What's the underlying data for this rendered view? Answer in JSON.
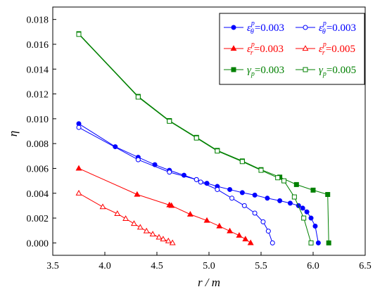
{
  "chart_data": {
    "type": "line",
    "title": "",
    "xlabel": "r / m",
    "ylabel": "η",
    "xlim": [
      3.5,
      6.5
    ],
    "ylim": [
      -0.001,
      0.019
    ],
    "xticks": [
      "3.5",
      "4.0",
      "4.5",
      "5.0",
      "5.5",
      "6.0",
      "6.5"
    ],
    "yticks": [
      "0.000",
      "0.002",
      "0.004",
      "0.006",
      "0.008",
      "0.010",
      "0.012",
      "0.014",
      "0.016",
      "0.018"
    ],
    "grid": false,
    "legend_position": "top-right",
    "series": [
      {
        "name": "εθp=0.003",
        "legend": {
          "sym": "ε",
          "sub": "θ",
          "sup": "p",
          "value": "=0.003"
        },
        "color": "#0000ff",
        "marker": "circle",
        "filled": true,
        "x": [
          3.75,
          4.1,
          4.32,
          4.48,
          4.62,
          4.76,
          4.88,
          4.98,
          5.08,
          5.2,
          5.32,
          5.44,
          5.56,
          5.68,
          5.78,
          5.86,
          5.9,
          5.94,
          5.98,
          6.02,
          6.05
        ],
        "y": [
          0.0096,
          0.00775,
          0.0069,
          0.0063,
          0.00585,
          0.00545,
          0.0051,
          0.0048,
          0.00455,
          0.0043,
          0.00405,
          0.00385,
          0.0036,
          0.0034,
          0.0032,
          0.003,
          0.0028,
          0.0025,
          0.002,
          0.00135,
          0.0
        ]
      },
      {
        "name": "εθp=0.003",
        "legend": {
          "sym": "ε",
          "sub": "θ",
          "sup": "p",
          "value": "=0.003"
        },
        "color": "#0000ff",
        "marker": "circle",
        "filled": false,
        "x": [
          3.75,
          4.32,
          4.62,
          4.88,
          4.92,
          5.08,
          5.22,
          5.34,
          5.44,
          5.52,
          5.57,
          5.61
        ],
        "y": [
          0.0093,
          0.0067,
          0.0057,
          0.0051,
          0.0049,
          0.0043,
          0.0036,
          0.003,
          0.0024,
          0.0017,
          0.00095,
          0.0
        ]
      },
      {
        "name": "εrp=0.003",
        "legend": {
          "sym": "ε",
          "sub": "r",
          "sup": "p",
          "value": "=0.003"
        },
        "color": "#ff0000",
        "marker": "triangle",
        "filled": true,
        "x": [
          3.75,
          4.31,
          4.62,
          4.64,
          4.82,
          4.98,
          5.1,
          5.2,
          5.29,
          5.35,
          5.4
        ],
        "y": [
          0.006,
          0.0039,
          0.00305,
          0.003,
          0.0023,
          0.0018,
          0.00135,
          0.00095,
          0.0006,
          0.0003,
          0.0
        ]
      },
      {
        "name": "εrp=0.005",
        "legend": {
          "sym": "ε",
          "sub": "r",
          "sup": "p",
          "value": "=0.005"
        },
        "color": "#ff0000",
        "marker": "triangle",
        "filled": false,
        "x": [
          3.75,
          3.98,
          4.12,
          4.2,
          4.28,
          4.34,
          4.4,
          4.46,
          4.52,
          4.56,
          4.61,
          4.65
        ],
        "y": [
          0.004,
          0.0029,
          0.00235,
          0.00195,
          0.00155,
          0.00125,
          0.00095,
          0.0007,
          0.00045,
          0.0003,
          0.00015,
          0.0
        ]
      },
      {
        "name": "γp=0.003",
        "legend": {
          "sym": "γ",
          "sub": "p",
          "sup": "",
          "value": "=0.003"
        },
        "color": "#008000",
        "marker": "square",
        "filled": true,
        "x": [
          3.75,
          4.32,
          4.62,
          4.88,
          5.08,
          5.32,
          5.5,
          5.68,
          5.84,
          6.0,
          6.14,
          6.15
        ],
        "y": [
          0.01685,
          0.0118,
          0.00985,
          0.0085,
          0.00745,
          0.0066,
          0.0059,
          0.0053,
          0.0047,
          0.00425,
          0.0039,
          0.0
        ]
      },
      {
        "name": "γp=0.005",
        "legend": {
          "sym": "γ",
          "sub": "p",
          "sup": "",
          "value": "=0.005"
        },
        "color": "#008000",
        "marker": "square",
        "filled": false,
        "x": [
          3.75,
          4.32,
          4.62,
          4.88,
          5.08,
          5.32,
          5.5,
          5.66,
          5.72,
          5.82,
          5.91,
          5.98
        ],
        "y": [
          0.0168,
          0.01175,
          0.0098,
          0.00845,
          0.0074,
          0.00655,
          0.00585,
          0.00525,
          0.005,
          0.0037,
          0.002,
          0.0
        ]
      }
    ]
  }
}
